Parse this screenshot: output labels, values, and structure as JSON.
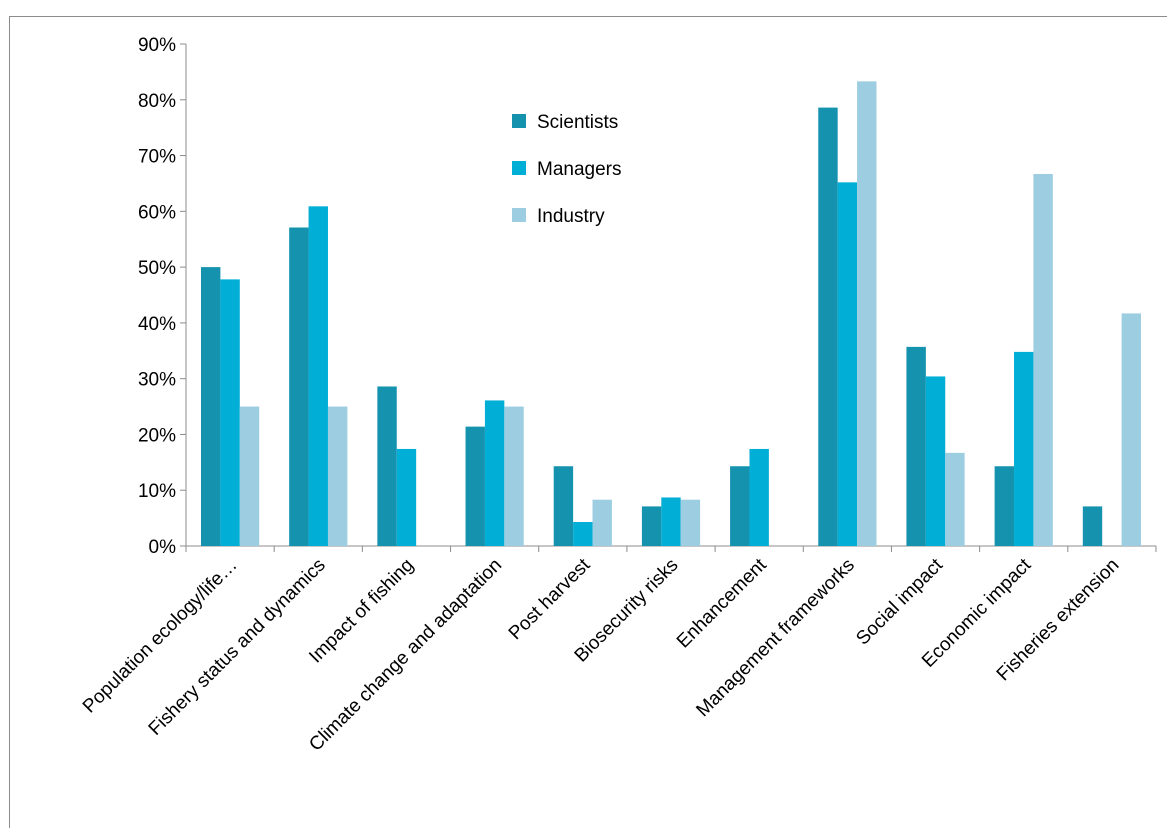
{
  "chart_data": {
    "type": "bar",
    "title": "",
    "xlabel": "",
    "ylabel": "",
    "ylim": [
      0,
      0.9
    ],
    "y_ticks": [
      "0%",
      "10%",
      "20%",
      "30%",
      "40%",
      "50%",
      "60%",
      "70%",
      "80%",
      "90%"
    ],
    "grid": false,
    "legend_position": "top-center",
    "categories": [
      "Population ecology/life…",
      "Fishery status and dynamics",
      "Impact of fishing",
      "Climate change and adaptation",
      "Post harvest",
      "Biosecurity risks",
      "Enhancement",
      "Management frameworks",
      "Social impact",
      "Economic impact",
      "Fisheries extension"
    ],
    "series": [
      {
        "name": "Scientists",
        "color": "#1592AE",
        "values": [
          0.5,
          0.571,
          0.286,
          0.214,
          0.143,
          0.071,
          0.143,
          0.786,
          0.357,
          0.143,
          0.071
        ]
      },
      {
        "name": "Managers",
        "color": "#00AED6",
        "values": [
          0.478,
          0.609,
          0.174,
          0.261,
          0.043,
          0.087,
          0.174,
          0.652,
          0.304,
          0.348,
          0.0
        ]
      },
      {
        "name": "Industry",
        "color": "#9DCDE1",
        "values": [
          0.25,
          0.25,
          0.0,
          0.25,
          0.083,
          0.083,
          0.0,
          0.833,
          0.167,
          0.667,
          0.417
        ]
      }
    ]
  }
}
